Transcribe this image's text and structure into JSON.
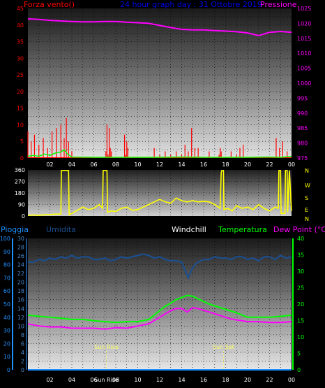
{
  "chart_data": [
    {
      "type": "line",
      "title": "24 hour graph day : 31 Ottobre 2019",
      "left_label": "Forza vento()",
      "right_label": "Pressione",
      "ylim_left": [
        0,
        45
      ],
      "ylim_right": [
        975,
        1025
      ],
      "y_ticks_left": [
        "0",
        "5",
        "10",
        "15",
        "20",
        "25",
        "30",
        "35",
        "40",
        "45"
      ],
      "y_ticks_right": [
        "975",
        "980",
        "985",
        "990",
        "995",
        "1000",
        "1005",
        "1010",
        "1015",
        "1020",
        "1025"
      ],
      "x_ticks": [
        "02",
        "04",
        "06",
        "08",
        "10",
        "12",
        "14",
        "16",
        "18",
        "20",
        "22",
        "00"
      ],
      "series": [
        {
          "color": "#ff00ff",
          "axis": "right",
          "x": [
            0,
            1,
            2,
            3,
            4,
            5,
            6,
            7,
            8,
            9,
            10,
            11,
            12,
            13,
            14,
            15,
            16,
            17,
            18,
            19,
            20,
            21,
            22,
            23,
            24
          ],
          "values": [
            1021.5,
            1021.3,
            1021.0,
            1020.8,
            1020.6,
            1020.5,
            1020.5,
            1020.6,
            1020.6,
            1020.4,
            1020.2,
            1020.0,
            1019.3,
            1018.6,
            1018.0,
            1017.8,
            1017.8,
            1017.6,
            1017.4,
            1017.2,
            1016.8,
            1015.9,
            1017.0,
            1017.3,
            1017.0
          ]
        },
        {
          "color": "#ff0000",
          "axis": "left",
          "x": [
            0,
            0.3,
            0.6,
            1.0,
            1.4,
            1.8,
            2.2,
            2.6,
            3.0,
            3.3,
            3.5,
            3.7,
            4.0,
            7.1,
            7.2,
            7.3,
            7.4,
            7.5,
            7.6,
            8.8,
            8.9,
            9.0,
            9.1,
            11.5,
            12,
            12.5,
            13,
            13.5,
            14,
            14.3,
            14.6,
            14.9,
            15.2,
            15.5,
            16.5,
            17.4,
            17.5,
            17.6,
            18.5,
            19.0,
            19.3,
            19.6,
            22.6,
            22.9,
            23.2,
            23.6
          ],
          "values": [
            8,
            5,
            7,
            4,
            6,
            3,
            8,
            9,
            10,
            6,
            12,
            5,
            2,
            2,
            10,
            1,
            9,
            3,
            2,
            7,
            1,
            5,
            3,
            3,
            1,
            2,
            1,
            2,
            1,
            4,
            2,
            9,
            3,
            3,
            2,
            1,
            3,
            2,
            2,
            1,
            3,
            4,
            6,
            3,
            5,
            2
          ]
        },
        {
          "color": "#00ff00",
          "axis": "left",
          "x": [
            0,
            0.5,
            1,
            1.5,
            2,
            2.5,
            3,
            3.3,
            3.6,
            4,
            6,
            8,
            10,
            12,
            14,
            16,
            18,
            20,
            22,
            23,
            24
          ],
          "values": [
            0.5,
            0.8,
            0.5,
            1.2,
            0.8,
            1.5,
            1.8,
            2.5,
            1.2,
            0.3,
            0.2,
            0.2,
            0.2,
            0.2,
            0.3,
            0.2,
            0.2,
            0.2,
            0.3,
            0.2,
            0.5
          ]
        }
      ]
    },
    {
      "type": "line",
      "ylim": [
        0,
        360
      ],
      "y_ticks": [
        "0",
        "90",
        "180",
        "270",
        "360"
      ],
      "x_ticks": [
        "02",
        "04",
        "06",
        "08",
        "10",
        "12",
        "14",
        "16",
        "18",
        "20",
        "22",
        "00"
      ],
      "right_letters": [
        "N",
        "W",
        "S",
        "E",
        "N"
      ],
      "series": [
        {
          "color": "#ffff00",
          "x": [
            0,
            0.5,
            1,
            1.5,
            2,
            2.5,
            3.0,
            3.05,
            3.7,
            3.75,
            4,
            4.5,
            5,
            5.5,
            6,
            6.5,
            6.8,
            6.85,
            7.2,
            7.25,
            7.6,
            8,
            8.5,
            9,
            9.5,
            10,
            10.5,
            11,
            11.5,
            12,
            12.5,
            13,
            13.5,
            14,
            14.5,
            15,
            15.5,
            16,
            16.5,
            17,
            17.5,
            17.6,
            17.65,
            17.8,
            17.85,
            18.2,
            18.6,
            19,
            19.5,
            20,
            20.5,
            21,
            21.5,
            22,
            22.5,
            22.8,
            22.85,
            23.0,
            23.05,
            23.4,
            23.45,
            23.6,
            23.65,
            23.8,
            24
          ],
          "values": [
            5,
            8,
            6,
            10,
            10,
            15,
            15,
            355,
            355,
            10,
            20,
            45,
            70,
            50,
            60,
            90,
            60,
            355,
            355,
            30,
            40,
            35,
            60,
            70,
            45,
            50,
            70,
            90,
            110,
            130,
            110,
            100,
            140,
            120,
            110,
            120,
            110,
            115,
            110,
            90,
            60,
            340,
            355,
            355,
            50,
            60,
            40,
            80,
            60,
            70,
            50,
            90,
            60,
            40,
            70,
            60,
            355,
            355,
            20,
            20,
            355,
            355,
            30,
            355,
            40
          ]
        }
      ]
    },
    {
      "type": "line",
      "labels": {
        "pioggia": "Pioggia",
        "umidita": "Umidita",
        "windchill": "Windchill",
        "temperatura": "Temperatura",
        "dew_point": "Dew Point (°C)"
      },
      "ylim_temp": [
        0,
        30
      ],
      "ylim_rain": [
        0,
        100
      ],
      "ylim_right": [
        0,
        40
      ],
      "y_ticks_rain": [
        "0",
        "10",
        "20",
        "30",
        "40",
        "50",
        "60",
        "70",
        "80",
        "90",
        "100"
      ],
      "y_ticks_temp": [
        "0",
        "2",
        "4",
        "6",
        "8",
        "10",
        "12",
        "14",
        "16",
        "18",
        "20",
        "22",
        "24",
        "26",
        "28",
        "30"
      ],
      "y_ticks_right": [
        "0",
        "5",
        "10",
        "15",
        "20",
        "25",
        "30",
        "35",
        "40"
      ],
      "x_ticks": [
        "02",
        "04",
        "06",
        "Sun Rise",
        "08",
        "10",
        "12",
        "14",
        "16",
        "18",
        "20",
        "22",
        "00"
      ],
      "annotations": [
        {
          "text": "Sun Rise",
          "x": 7.15
        },
        {
          "text": "Sun Set",
          "x": 17.8
        }
      ],
      "series": [
        {
          "color": "#1c4f8f",
          "axis": "rain",
          "x": [
            0,
            0.5,
            1,
            1.5,
            2,
            2.5,
            3,
            3.5,
            4,
            4.5,
            5,
            5.5,
            6,
            6.5,
            7,
            7.5,
            8,
            8.5,
            9,
            9.5,
            10,
            10.5,
            11,
            11.5,
            12,
            12.5,
            13,
            13.5,
            14,
            14.3,
            14.6,
            14.9,
            15.2,
            15.5,
            16,
            16.5,
            17,
            17.5,
            18,
            18.5,
            19,
            19.5,
            20,
            20.5,
            21,
            21.5,
            22,
            22.5,
            23,
            23.5,
            24
          ],
          "values": [
            82,
            82,
            84,
            83,
            85,
            84,
            86,
            85,
            87,
            85,
            86,
            86,
            84,
            84,
            85,
            83,
            84,
            86,
            85,
            86,
            87,
            88,
            87,
            85,
            86,
            84,
            83,
            83,
            82,
            76,
            70,
            76,
            80,
            82,
            84,
            84,
            86,
            85,
            85,
            84,
            86,
            86,
            84,
            85,
            83,
            86,
            86,
            84,
            87,
            85,
            86
          ]
        },
        {
          "color": "#00ff00",
          "axis": "temp",
          "x": [
            0,
            1,
            2,
            3,
            4,
            5,
            6,
            7,
            8,
            9,
            10,
            11,
            12,
            12.5,
            13,
            13.5,
            14,
            14.5,
            15,
            15.5,
            16,
            16.5,
            17,
            17.5,
            18,
            18.5,
            19,
            19.5,
            20,
            21,
            22,
            23,
            24
          ],
          "values": [
            12.5,
            12.2,
            12.0,
            11.8,
            11.5,
            11.5,
            11.2,
            11.0,
            10.8,
            11.0,
            11.0,
            11.5,
            13.5,
            14.5,
            15.2,
            16.0,
            16.5,
            17.0,
            16.8,
            16.2,
            15.6,
            15.0,
            14.6,
            14.2,
            13.8,
            13.4,
            13.0,
            12.5,
            12.0,
            12.0,
            12.0,
            12.2,
            12.5
          ]
        },
        {
          "color": "#ff00ff",
          "axis": "temp",
          "x": [
            0,
            1,
            2,
            3,
            4,
            5,
            6,
            7,
            8,
            9,
            10,
            11,
            12,
            12.5,
            13,
            13.5,
            14,
            14.5,
            15,
            15.5,
            16,
            16.5,
            17,
            17.5,
            18,
            18.5,
            19,
            19.5,
            20,
            21,
            22,
            23,
            24
          ],
          "values": [
            10.5,
            10.0,
            9.8,
            9.8,
            9.5,
            9.5,
            9.5,
            9.3,
            9.6,
            9.5,
            10.0,
            10.5,
            12.0,
            12.8,
            13.5,
            14.0,
            14.0,
            13.2,
            14.2,
            14.0,
            13.6,
            13.2,
            12.8,
            12.4,
            12.0,
            11.6,
            11.4,
            11.2,
            11.0,
            11.0,
            10.8,
            10.8,
            11.0
          ]
        },
        {
          "color": "#1e90ff",
          "axis": "rain",
          "x": [
            0,
            24
          ],
          "values": [
            0,
            0
          ]
        }
      ]
    }
  ]
}
